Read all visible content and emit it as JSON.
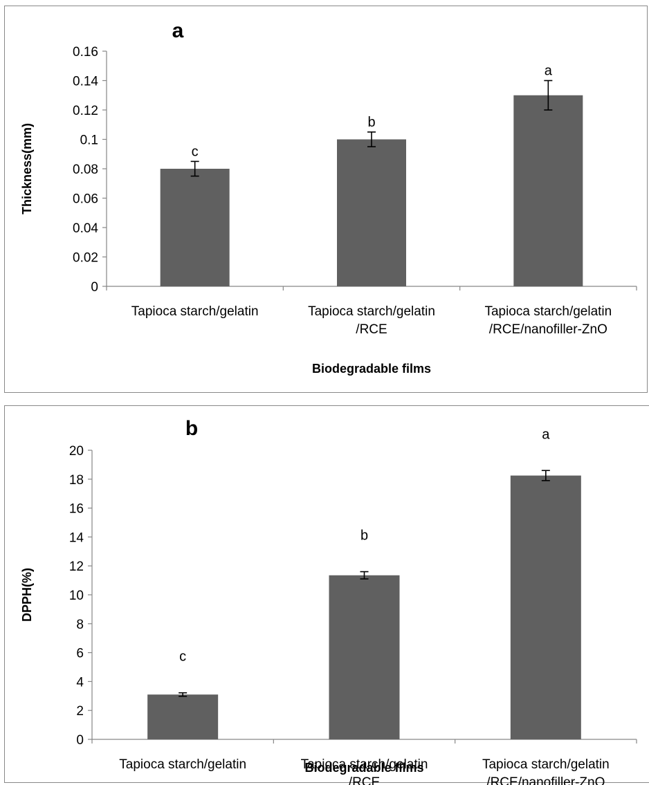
{
  "chart_data": [
    {
      "type": "bar",
      "panel_label": "a",
      "categories": [
        [
          "Tapioca starch/gelatin"
        ],
        [
          "Tapioca starch/gelatin",
          "/RCE"
        ],
        [
          "Tapioca starch/gelatin",
          "/RCE/nanofiller-ZnO"
        ]
      ],
      "values": [
        0.08,
        0.1,
        0.13
      ],
      "errors": [
        0.005,
        0.005,
        0.01
      ],
      "significance_letters": [
        "c",
        "b",
        "a"
      ],
      "xlabel": "Biodegradable films",
      "ylabel": "Thickness(mm)",
      "ylim": [
        0,
        0.16
      ],
      "yticks": [
        "0",
        "0.02",
        "0.04",
        "0.06",
        "0.08",
        "0.1",
        "0.12",
        "0.14",
        "0.16"
      ],
      "bar_color": "#606060",
      "grid": false
    },
    {
      "type": "bar",
      "panel_label": "b",
      "categories": [
        [
          "Tapioca starch/gelatin"
        ],
        [
          "Tapioca starch/gelatin",
          "/RCE"
        ],
        [
          "Tapioca starch/gelatin",
          "/RCE/nanofiller-ZnO"
        ]
      ],
      "values": [
        3.1,
        11.35,
        18.25
      ],
      "errors": [
        0.12,
        0.25,
        0.35
      ],
      "significance_letters": [
        "c",
        "b",
        "a"
      ],
      "xlabel": "Biodegradable films",
      "ylabel": "DPPH(%)",
      "ylim": [
        0,
        20
      ],
      "yticks": [
        "0",
        "2",
        "4",
        "6",
        "8",
        "10",
        "12",
        "14",
        "16",
        "18",
        "20"
      ],
      "bar_color": "#606060",
      "grid": false
    }
  ]
}
